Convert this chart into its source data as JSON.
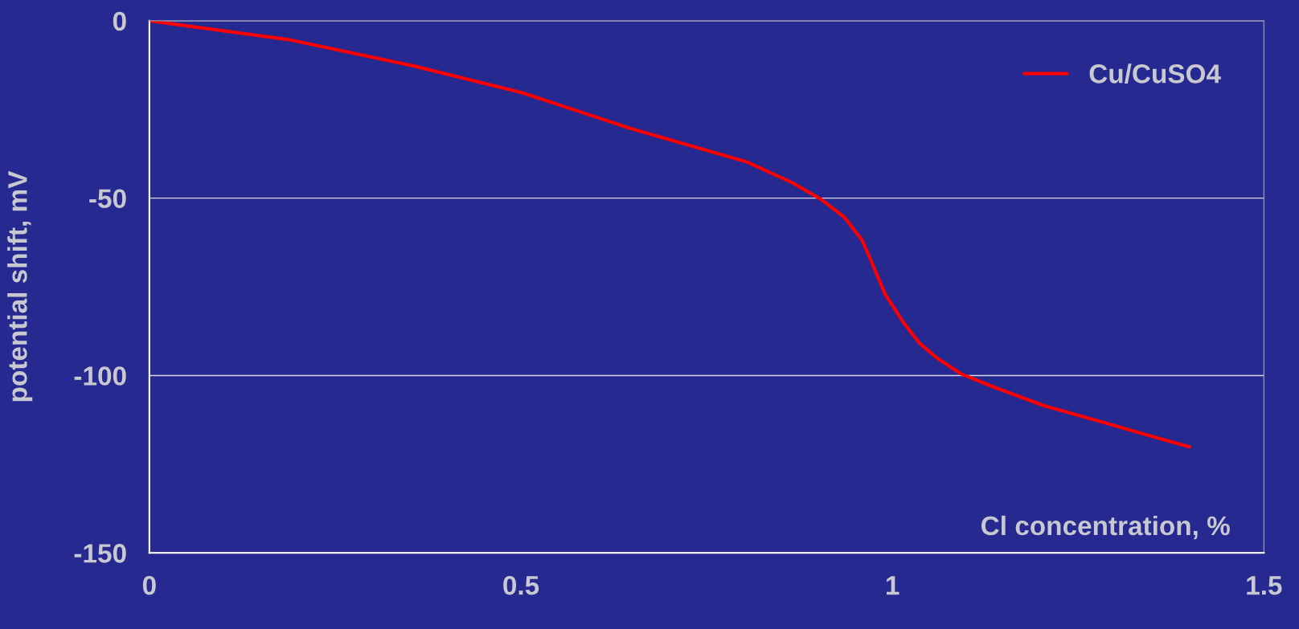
{
  "chart_data": {
    "type": "line",
    "xlabel": "Cl concentration, %",
    "ylabel": "potential shift, mV",
    "xlim": [
      0,
      1.5
    ],
    "ylim": [
      -150,
      0
    ],
    "xticks": [
      0,
      0.5,
      1,
      1.5
    ],
    "yticks": [
      0,
      -50,
      -100,
      -150
    ],
    "grid": "y",
    "legend": "top right",
    "marker": "none",
    "line_style": "solid",
    "series": [
      {
        "name": "Cu/CuSO4",
        "color": "#ff0000",
        "x": [
          0,
          0.19,
          0.357,
          0.502,
          0.647,
          0.803,
          0.864,
          0.903,
          0.935,
          0.959,
          0.97,
          0.99,
          1.015,
          1.037,
          1.059,
          1.093,
          1.137,
          1.204,
          1.282,
          1.36,
          1.4
        ],
        "values": [
          0,
          -5.4,
          -12.8,
          -20.3,
          -30.3,
          -39.7,
          -45.5,
          -50.2,
          -55.3,
          -61.8,
          -67,
          -77,
          -85.1,
          -91,
          -94.9,
          -99.6,
          -103.3,
          -108.5,
          -113.1,
          -117.8,
          -120.1
        ]
      }
    ]
  }
}
